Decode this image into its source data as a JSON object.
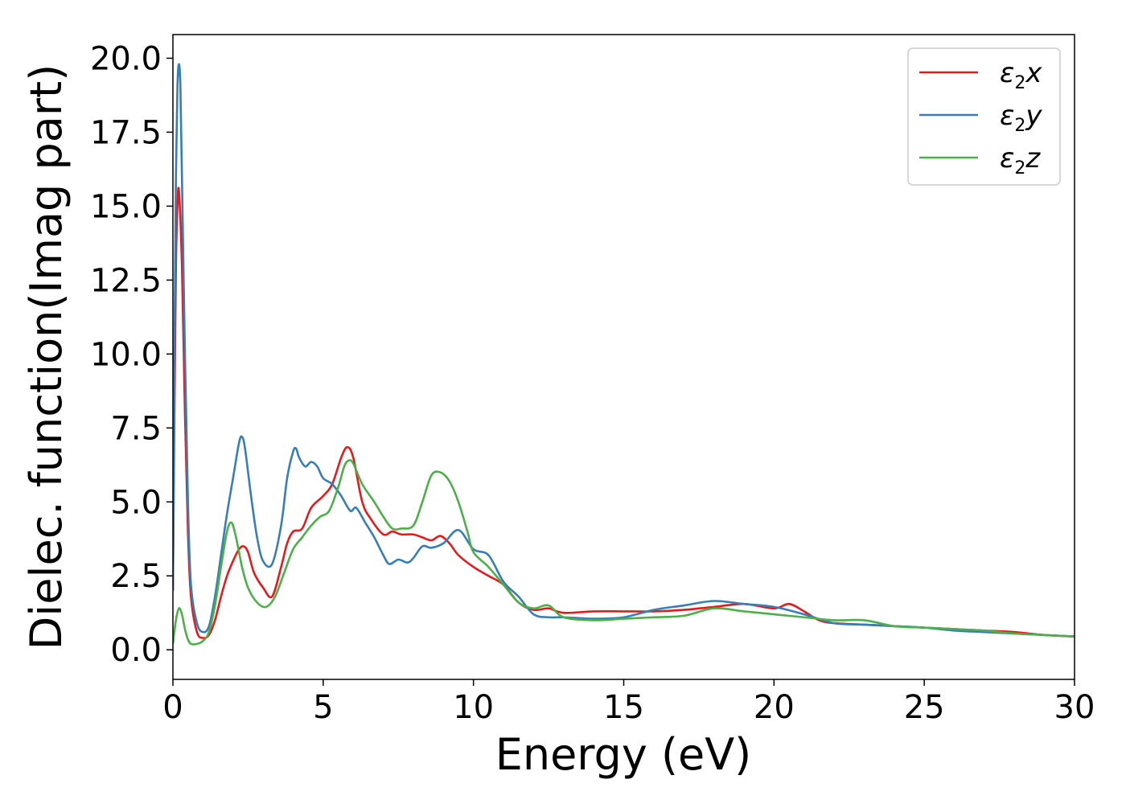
{
  "chart_data": {
    "type": "line",
    "xlabel": "Energy (eV)",
    "ylabel": "Dielec. function(Imag part)",
    "xlim": [
      0,
      30
    ],
    "ylim": [
      -1.0,
      20.8
    ],
    "xticks": [
      0,
      5,
      10,
      15,
      20,
      25,
      30
    ],
    "yticks": [
      "0.0",
      "2.5",
      "5.0",
      "7.5",
      "10.0",
      "12.5",
      "15.0",
      "17.5",
      "20.0"
    ],
    "grid": false,
    "legend_position": "top-right",
    "series": [
      {
        "name": "ε2x",
        "legend": {
          "base": "ε",
          "sub": "2",
          "suffix": "x"
        },
        "color": "#e41a1c",
        "x": [
          0,
          0.05,
          0.1,
          0.15,
          0.2,
          0.3,
          0.4,
          0.5,
          0.6,
          0.8,
          1.0,
          1.2,
          1.4,
          1.6,
          1.8,
          2.0,
          2.2,
          2.35,
          2.5,
          2.7,
          3.0,
          3.3,
          3.6,
          3.8,
          4.0,
          4.3,
          4.6,
          5.0,
          5.3,
          5.6,
          5.8,
          6.0,
          6.3,
          6.6,
          7.0,
          7.3,
          7.6,
          8.0,
          8.3,
          8.6,
          8.9,
          9.2,
          9.5,
          10.0,
          10.5,
          11.0,
          11.5,
          12.0,
          12.5,
          13.0,
          14.0,
          15.0,
          16.0,
          17.0,
          18.0,
          19.0,
          20.0,
          20.5,
          21.0,
          21.5,
          22.0,
          23.0,
          24.0,
          25.0,
          26.0,
          27.0,
          28.0,
          29.0,
          30.0
        ],
        "values": [
          2.0,
          8.0,
          13.0,
          15.0,
          15.5,
          13.0,
          8.0,
          4.0,
          1.8,
          0.6,
          0.4,
          0.5,
          1.0,
          1.8,
          2.5,
          3.0,
          3.4,
          3.5,
          3.3,
          2.6,
          2.1,
          1.8,
          2.8,
          3.6,
          4.0,
          4.1,
          4.8,
          5.2,
          5.6,
          6.5,
          6.85,
          6.5,
          5.0,
          4.4,
          3.9,
          4.0,
          3.9,
          3.9,
          3.8,
          3.7,
          3.85,
          3.6,
          3.2,
          2.8,
          2.5,
          2.2,
          1.6,
          1.35,
          1.4,
          1.25,
          1.3,
          1.3,
          1.3,
          1.35,
          1.45,
          1.55,
          1.4,
          1.55,
          1.3,
          1.0,
          0.9,
          0.85,
          0.8,
          0.75,
          0.7,
          0.65,
          0.6,
          0.5,
          0.45
        ]
      },
      {
        "name": "ε2y",
        "legend": {
          "base": "ε",
          "sub": "2",
          "suffix": "y"
        },
        "color": "#377eb8",
        "x": [
          0,
          0.05,
          0.1,
          0.15,
          0.2,
          0.25,
          0.3,
          0.4,
          0.5,
          0.6,
          0.8,
          1.0,
          1.2,
          1.4,
          1.6,
          1.8,
          2.0,
          2.2,
          2.3,
          2.4,
          2.6,
          2.8,
          3.0,
          3.3,
          3.6,
          3.8,
          4.0,
          4.1,
          4.2,
          4.4,
          4.6,
          4.8,
          5.0,
          5.3,
          5.6,
          5.9,
          6.1,
          6.4,
          6.7,
          7.0,
          7.2,
          7.5,
          7.8,
          8.0,
          8.3,
          8.6,
          9.0,
          9.5,
          10.0,
          10.5,
          11.0,
          11.5,
          12.0,
          12.5,
          13.0,
          14.0,
          15.0,
          16.0,
          17.0,
          18.0,
          19.0,
          20.0,
          21.0,
          22.0,
          23.0,
          24.0,
          25.0,
          26.0,
          27.0,
          28.0,
          29.0,
          30.0
        ],
        "values": [
          2.0,
          10.0,
          16.0,
          19.0,
          19.8,
          19.0,
          16.0,
          10.0,
          5.0,
          2.2,
          0.9,
          0.6,
          0.8,
          1.8,
          3.2,
          4.6,
          5.8,
          7.0,
          7.2,
          6.8,
          5.2,
          3.8,
          3.0,
          2.9,
          4.2,
          5.8,
          6.7,
          6.8,
          6.5,
          6.2,
          6.35,
          6.2,
          5.8,
          5.6,
          5.2,
          4.7,
          4.8,
          4.3,
          3.8,
          3.2,
          2.9,
          3.05,
          2.95,
          3.1,
          3.5,
          3.45,
          3.6,
          4.05,
          3.4,
          3.2,
          2.3,
          1.8,
          1.2,
          1.1,
          1.1,
          1.05,
          1.1,
          1.35,
          1.5,
          1.65,
          1.55,
          1.45,
          1.2,
          0.9,
          0.85,
          0.8,
          0.75,
          0.65,
          0.6,
          0.55,
          0.5,
          0.45
        ]
      },
      {
        "name": "ε2z",
        "legend": {
          "base": "ε",
          "sub": "2",
          "suffix": "z"
        },
        "color": "#4daf4a",
        "x": [
          0,
          0.1,
          0.2,
          0.3,
          0.4,
          0.5,
          0.6,
          0.8,
          1.0,
          1.2,
          1.4,
          1.6,
          1.8,
          1.95,
          2.1,
          2.3,
          2.5,
          2.8,
          3.1,
          3.4,
          3.7,
          4.0,
          4.3,
          4.6,
          4.9,
          5.2,
          5.5,
          5.7,
          5.85,
          6.0,
          6.3,
          6.7,
          7.0,
          7.3,
          7.6,
          8.0,
          8.3,
          8.6,
          8.9,
          9.2,
          9.5,
          9.8,
          10.0,
          10.5,
          11.0,
          11.5,
          12.0,
          12.5,
          13.0,
          14.0,
          15.0,
          16.0,
          17.0,
          18.0,
          19.0,
          20.0,
          21.0,
          22.0,
          23.0,
          24.0,
          25.0,
          26.0,
          27.0,
          28.0,
          29.0,
          30.0
        ],
        "values": [
          0.2,
          1.0,
          1.4,
          1.2,
          0.7,
          0.35,
          0.2,
          0.2,
          0.3,
          0.6,
          1.5,
          2.8,
          4.0,
          4.3,
          3.8,
          2.8,
          2.1,
          1.6,
          1.45,
          1.8,
          2.6,
          3.4,
          3.8,
          4.2,
          4.5,
          4.7,
          5.5,
          6.2,
          6.4,
          6.3,
          5.6,
          5.0,
          4.5,
          4.1,
          4.1,
          4.2,
          5.0,
          5.9,
          6.0,
          5.7,
          5.0,
          4.0,
          3.3,
          2.8,
          2.2,
          1.6,
          1.4,
          1.5,
          1.1,
          1.0,
          1.05,
          1.1,
          1.15,
          1.4,
          1.3,
          1.2,
          1.1,
          1.0,
          1.0,
          0.8,
          0.75,
          0.7,
          0.65,
          0.55,
          0.5,
          0.45
        ]
      }
    ]
  }
}
